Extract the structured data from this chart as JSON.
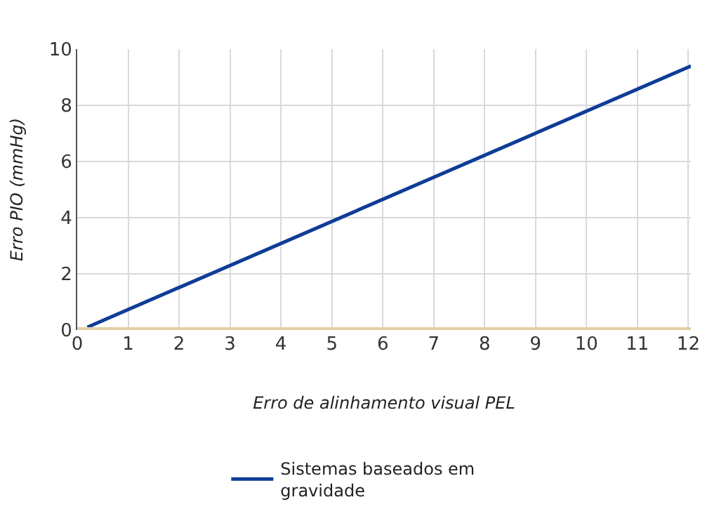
{
  "chart_data": {
    "type": "line",
    "xlabel": "Erro de alinhamento visual PEL",
    "ylabel": "Erro PIO (mmHg)",
    "series": [
      {
        "name": "Sistemas baseados em gravidade",
        "color": "#0f3c96",
        "x": [
          0.2,
          12.05
        ],
        "values": [
          0.1,
          9.4
        ]
      },
      {
        "color": "#e3cfa8",
        "x": [
          0,
          12.05
        ],
        "values": [
          0,
          0
        ]
      }
    ],
    "xlim": [
      0,
      12.05
    ],
    "xticks": [
      0,
      1,
      2,
      3,
      4,
      5,
      6,
      7,
      8,
      9,
      10,
      11,
      12
    ],
    "ylim": [
      0,
      10
    ],
    "yticks": [
      0,
      2,
      4,
      6,
      8,
      10
    ],
    "grid": true,
    "legend": "bottom",
    "marker": "none",
    "line_style": "solid"
  }
}
